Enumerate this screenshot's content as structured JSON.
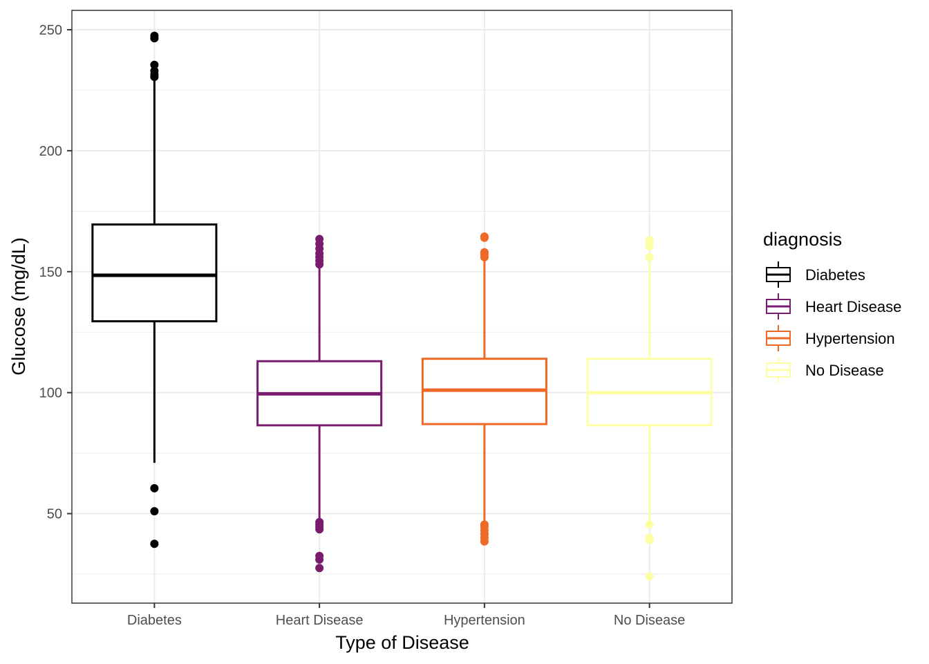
{
  "chart_data": {
    "type": "boxplot",
    "xlabel": "Type of Disease",
    "ylabel": "Glucose (mg/dL)",
    "categories": [
      "Diabetes",
      "Heart Disease",
      "Hypertension",
      "No Disease"
    ],
    "y_ticks": [
      50,
      100,
      150,
      200,
      250
    ],
    "ylim": [
      13,
      258
    ],
    "grid": true,
    "legend": {
      "title": "diagnosis",
      "placement": "right",
      "entries": [
        "Diabetes",
        "Heart Disease",
        "Hypertension",
        "No Disease"
      ]
    },
    "series": [
      {
        "name": "Diabetes",
        "color": "#000000",
        "whisker_low": 71,
        "q1": 129.5,
        "median": 148.5,
        "q3": 169.5,
        "whisker_high": 229,
        "outliers": [
          247.5,
          246.5,
          235.5,
          233,
          231.5,
          230.5,
          60.5,
          51,
          37.5
        ]
      },
      {
        "name": "Heart Disease",
        "color": "#781c6d",
        "whisker_low": 46,
        "q1": 86.5,
        "median": 99.5,
        "q3": 113,
        "whisker_high": 152,
        "outliers": [
          163.5,
          161.5,
          159.5,
          157.5,
          156,
          154.5,
          153,
          46.5,
          45.5,
          44.5,
          43.5,
          32.5,
          31,
          27.5
        ]
      },
      {
        "name": "Hypertension",
        "color": "#ed6925",
        "whisker_low": 46,
        "q1": 87,
        "median": 101,
        "q3": 114,
        "whisker_high": 155,
        "outliers": [
          164.5,
          164,
          158,
          157,
          156,
          45.5,
          44.5,
          43,
          41.5,
          40,
          38.5
        ]
      },
      {
        "name": "No Disease",
        "color": "#fcffa4",
        "whisker_low": 46,
        "q1": 86.5,
        "median": 100,
        "q3": 114,
        "whisker_high": 154,
        "outliers": [
          163,
          162.5,
          160.5,
          156,
          45.5,
          40,
          39,
          24
        ]
      }
    ]
  }
}
